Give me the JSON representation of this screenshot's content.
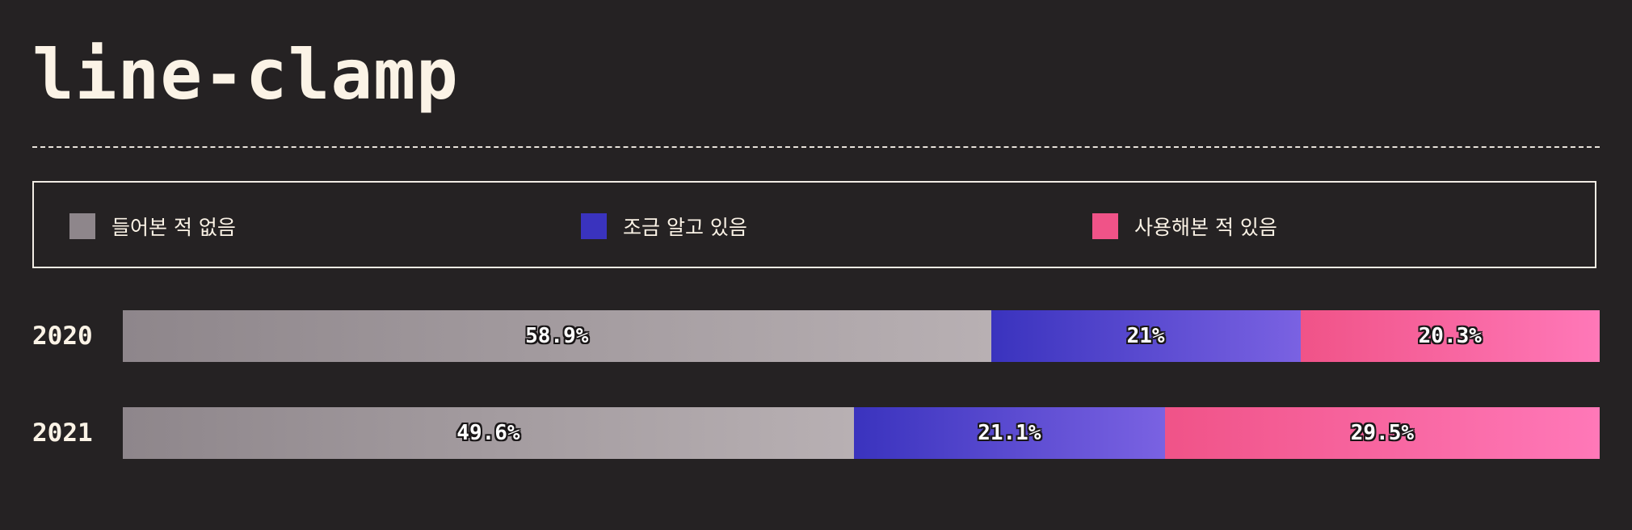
{
  "title": "line-clamp",
  "colors": {
    "background": "#252223",
    "never_heard": "#8e868b",
    "never_heard_end": "#b8b0b3",
    "know_a_little": "#3a33be",
    "know_a_little_end": "#7a62e2",
    "used_it": "#f05388",
    "used_it_end": "#ff78b8"
  },
  "legend": [
    {
      "label": "들어본 적 없음",
      "color": "#8e868b"
    },
    {
      "label": "조금 알고 있음",
      "color": "#3a33be"
    },
    {
      "label": "사용해본 적 있음",
      "color": "#f05388"
    }
  ],
  "chart_data": {
    "type": "bar",
    "orientation": "horizontal",
    "stacked": true,
    "normalized": true,
    "categories": [
      "2020",
      "2021"
    ],
    "series": [
      {
        "name": "들어본 적 없음",
        "values": [
          58.9,
          49.6
        ],
        "labels": [
          "58.9%",
          "49.6%"
        ]
      },
      {
        "name": "조금 알고 있음",
        "values": [
          21.0,
          21.1
        ],
        "labels": [
          "21%",
          "21.1%"
        ]
      },
      {
        "name": "사용해본 적 있음",
        "values": [
          20.3,
          29.5
        ],
        "labels": [
          "20.3%",
          "29.5%"
        ]
      }
    ],
    "title": "line-clamp",
    "xlabel": "",
    "ylabel": "",
    "xlim": [
      0,
      100
    ],
    "grid": false,
    "legend_position": "top"
  }
}
